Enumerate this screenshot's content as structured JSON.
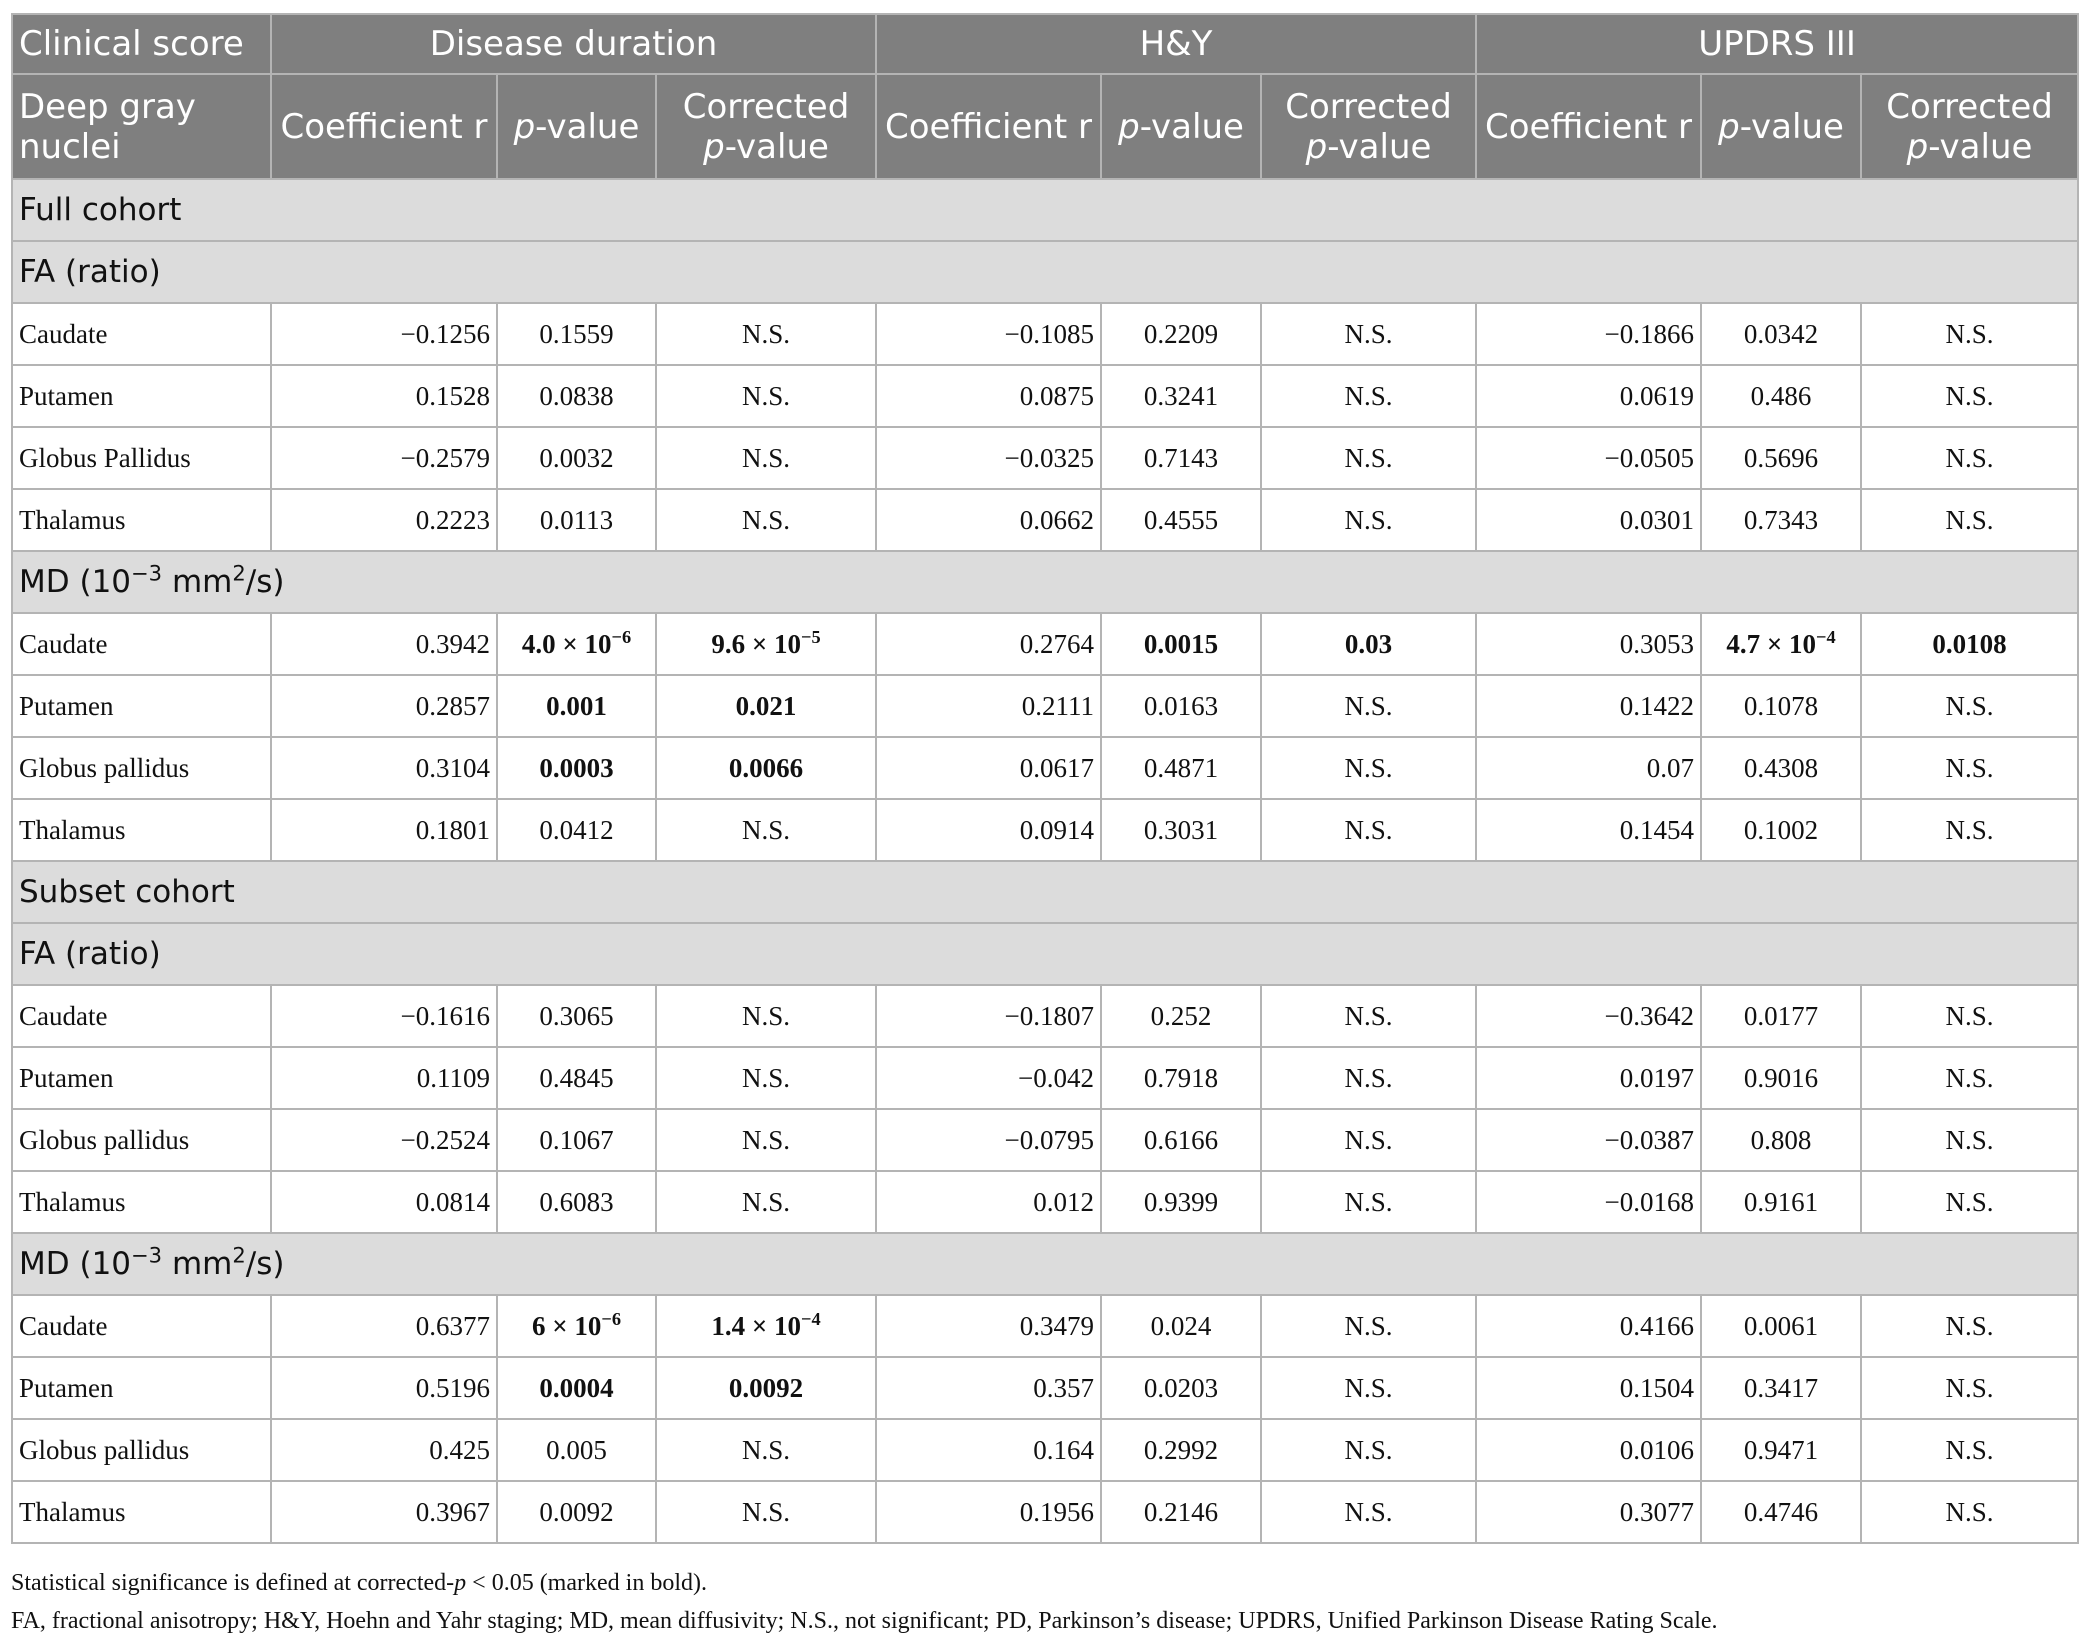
{
  "header": {
    "row1": [
      "Clinical score",
      "Disease duration",
      "H&Y",
      "UPDRS III"
    ],
    "label": "Deep gray nuclei",
    "columns": [
      "Coefficient r",
      [
        {
          "text": "p",
          "style": "italic"
        },
        "-value"
      ],
      [
        "Corrected ",
        {
          "text": "p",
          "style": "italic"
        },
        "-value"
      ],
      "Coefficient r",
      [
        {
          "text": "p",
          "style": "italic"
        },
        "-value"
      ],
      [
        "Corrected ",
        {
          "text": "p",
          "style": "italic"
        },
        "-value"
      ],
      "Coefficient r",
      [
        {
          "text": "p",
          "style": "italic"
        },
        "-value"
      ],
      [
        "Corrected ",
        {
          "text": "p",
          "style": "italic"
        },
        "-value"
      ]
    ]
  },
  "sections": [
    {
      "title": "Full cohort",
      "groups": [
        {
          "title": "FA (ratio)",
          "rows": [
            {
              "label": "Caudate",
              "cells": [
                "−0.1256",
                "0.1559",
                "N.S.",
                "−0.1085",
                "0.2209",
                "N.S.",
                "−0.1866",
                "0.0342",
                "N.S."
              ]
            },
            {
              "label": "Putamen",
              "cells": [
                "0.1528",
                "0.0838",
                "N.S.",
                "0.0875",
                "0.3241",
                "N.S.",
                "0.0619",
                "0.486",
                "N.S."
              ]
            },
            {
              "label": "Globus Pallidus",
              "cells": [
                "−0.2579",
                "0.0032",
                "N.S.",
                "−0.0325",
                "0.7143",
                "N.S.",
                "−0.0505",
                "0.5696",
                "N.S."
              ]
            },
            {
              "label": "Thalamus",
              "cells": [
                "0.2223",
                "0.0113",
                "N.S.",
                "0.0662",
                "0.4555",
                "N.S.",
                "0.0301",
                "0.7343",
                "N.S."
              ]
            }
          ]
        },
        {
          "title": [
            "MD (10",
            {
              "text": "−3",
              "style": "sup"
            },
            " mm",
            {
              "text": "2",
              "style": "sup"
            },
            "/s)"
          ],
          "rows": [
            {
              "label": "Caudate",
              "cells": [
                "0.3942",
                {
                  "text": [
                    "4.0 × 10",
                    {
                      "text": "−6",
                      "style": "sup"
                    }
                  ],
                  "bold": true
                },
                {
                  "text": [
                    "9.6 × 10",
                    {
                      "text": "−5",
                      "style": "sup"
                    }
                  ],
                  "bold": true
                },
                "0.2764",
                {
                  "text": "0.0015",
                  "bold": true
                },
                {
                  "text": "0.03",
                  "bold": true
                },
                "0.3053",
                {
                  "text": [
                    "4.7 × 10",
                    {
                      "text": "−4",
                      "style": "sup"
                    }
                  ],
                  "bold": true
                },
                {
                  "text": "0.0108",
                  "bold": true
                }
              ]
            },
            {
              "label": "Putamen",
              "cells": [
                "0.2857",
                {
                  "text": "0.001",
                  "bold": true
                },
                {
                  "text": "0.021",
                  "bold": true
                },
                "0.2111",
                "0.0163",
                "N.S.",
                "0.1422",
                "0.1078",
                "N.S."
              ]
            },
            {
              "label": "Globus pallidus",
              "cells": [
                "0.3104",
                {
                  "text": "0.0003",
                  "bold": true
                },
                {
                  "text": "0.0066",
                  "bold": true
                },
                "0.0617",
                "0.4871",
                "N.S.",
                "0.07",
                "0.4308",
                "N.S."
              ]
            },
            {
              "label": "Thalamus",
              "cells": [
                "0.1801",
                "0.0412",
                "N.S.",
                "0.0914",
                "0.3031",
                "N.S.",
                "0.1454",
                "0.1002",
                "N.S."
              ]
            }
          ]
        }
      ]
    },
    {
      "title": "Subset cohort",
      "groups": [
        {
          "title": "FA (ratio)",
          "rows": [
            {
              "label": "Caudate",
              "cells": [
                "−0.1616",
                "0.3065",
                "N.S.",
                "−0.1807",
                "0.252",
                "N.S.",
                "−0.3642",
                "0.0177",
                "N.S."
              ]
            },
            {
              "label": "Putamen",
              "cells": [
                "0.1109",
                "0.4845",
                "N.S.",
                "−0.042",
                "0.7918",
                "N.S.",
                "0.0197",
                "0.9016",
                "N.S."
              ]
            },
            {
              "label": "Globus pallidus",
              "cells": [
                "−0.2524",
                "0.1067",
                "N.S.",
                "−0.0795",
                "0.6166",
                "N.S.",
                "−0.0387",
                "0.808",
                "N.S."
              ]
            },
            {
              "label": "Thalamus",
              "cells": [
                "0.0814",
                "0.6083",
                "N.S.",
                "0.012",
                "0.9399",
                "N.S.",
                "−0.0168",
                "0.9161",
                "N.S."
              ]
            }
          ]
        },
        {
          "title": [
            "MD (10",
            {
              "text": "−3",
              "style": "sup"
            },
            " mm",
            {
              "text": "2",
              "style": "sup"
            },
            "/s)"
          ],
          "rows": [
            {
              "label": "Caudate",
              "cells": [
                "0.6377",
                {
                  "text": [
                    "6 × 10",
                    {
                      "text": "−6",
                      "style": "sup"
                    }
                  ],
                  "bold": true
                },
                {
                  "text": [
                    "1.4 × 10",
                    {
                      "text": "−4",
                      "style": "sup"
                    }
                  ],
                  "bold": true
                },
                "0.3479",
                "0.024",
                "N.S.",
                "0.4166",
                "0.0061",
                "N.S."
              ]
            },
            {
              "label": "Putamen",
              "cells": [
                "0.5196",
                {
                  "text": "0.0004",
                  "bold": true
                },
                {
                  "text": "0.0092",
                  "bold": true
                },
                "0.357",
                "0.0203",
                "N.S.",
                "0.1504",
                "0.3417",
                "N.S."
              ]
            },
            {
              "label": "Globus pallidus",
              "cells": [
                "0.425",
                "0.005",
                "N.S.",
                "0.164",
                "0.2992",
                "N.S.",
                "0.0106",
                "0.9471",
                "N.S."
              ]
            },
            {
              "label": "Thalamus",
              "cells": [
                "0.3967",
                "0.0092",
                "N.S.",
                "0.1956",
                "0.2146",
                "N.S.",
                "0.3077",
                "0.4746",
                "N.S."
              ]
            }
          ]
        }
      ]
    }
  ],
  "footnotes": [
    [
      "Statistical significance is defined at corrected-",
      {
        "text": "p",
        "style": "italic"
      },
      " < 0.05 (marked in bold)."
    ],
    "FA, fractional anisotropy; H&Y, Hoehn and Yahr staging; MD, mean diffusivity; N.S., not significant; PD, Parkinson’s disease; UPDRS, Unified Parkinson Disease Rating Scale."
  ]
}
